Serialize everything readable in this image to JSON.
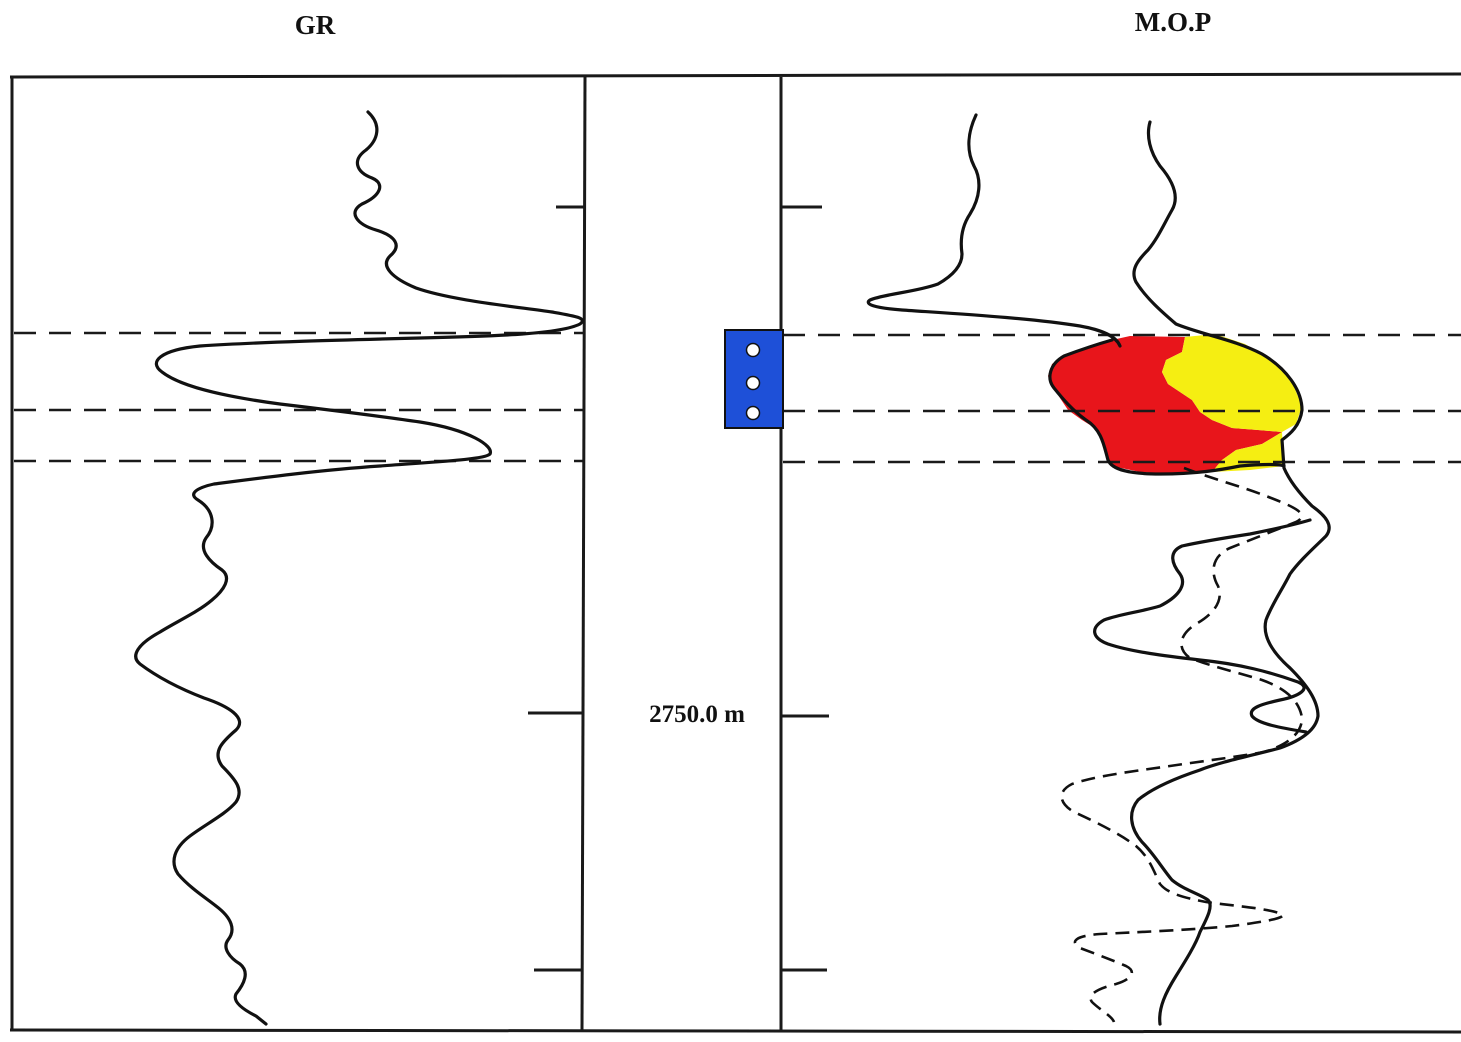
{
  "tracks": {
    "gr_title": "GR",
    "mop_title": "M.O.P"
  },
  "depth": {
    "label": "2750.0 m"
  },
  "perforation": {
    "shot_count": 3
  },
  "colors": {
    "perforation": "#1e50d8",
    "zone_fill_red": "#e8151b",
    "zone_fill_yellow": "#f5ee12",
    "line": "#111111"
  }
}
